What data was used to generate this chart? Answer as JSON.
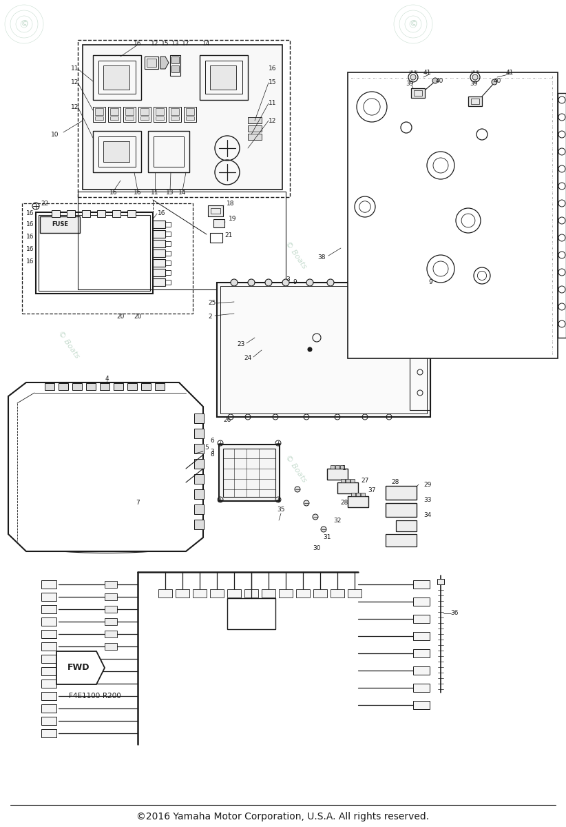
{
  "copyright_text": "©2016 Yamaha Motor Corporation, U.S.A. All rights reserved.",
  "part_code": "F4E1100-R200",
  "fwd_label": "FWD",
  "background_color": "#ffffff",
  "diagram_color": "#1a1a1a",
  "light_gray": "#aaaaaa",
  "mid_gray": "#888888",
  "watermark_color": "#c8ddd0",
  "fig_width": 8.22,
  "fig_height": 12.0,
  "dpi": 100
}
